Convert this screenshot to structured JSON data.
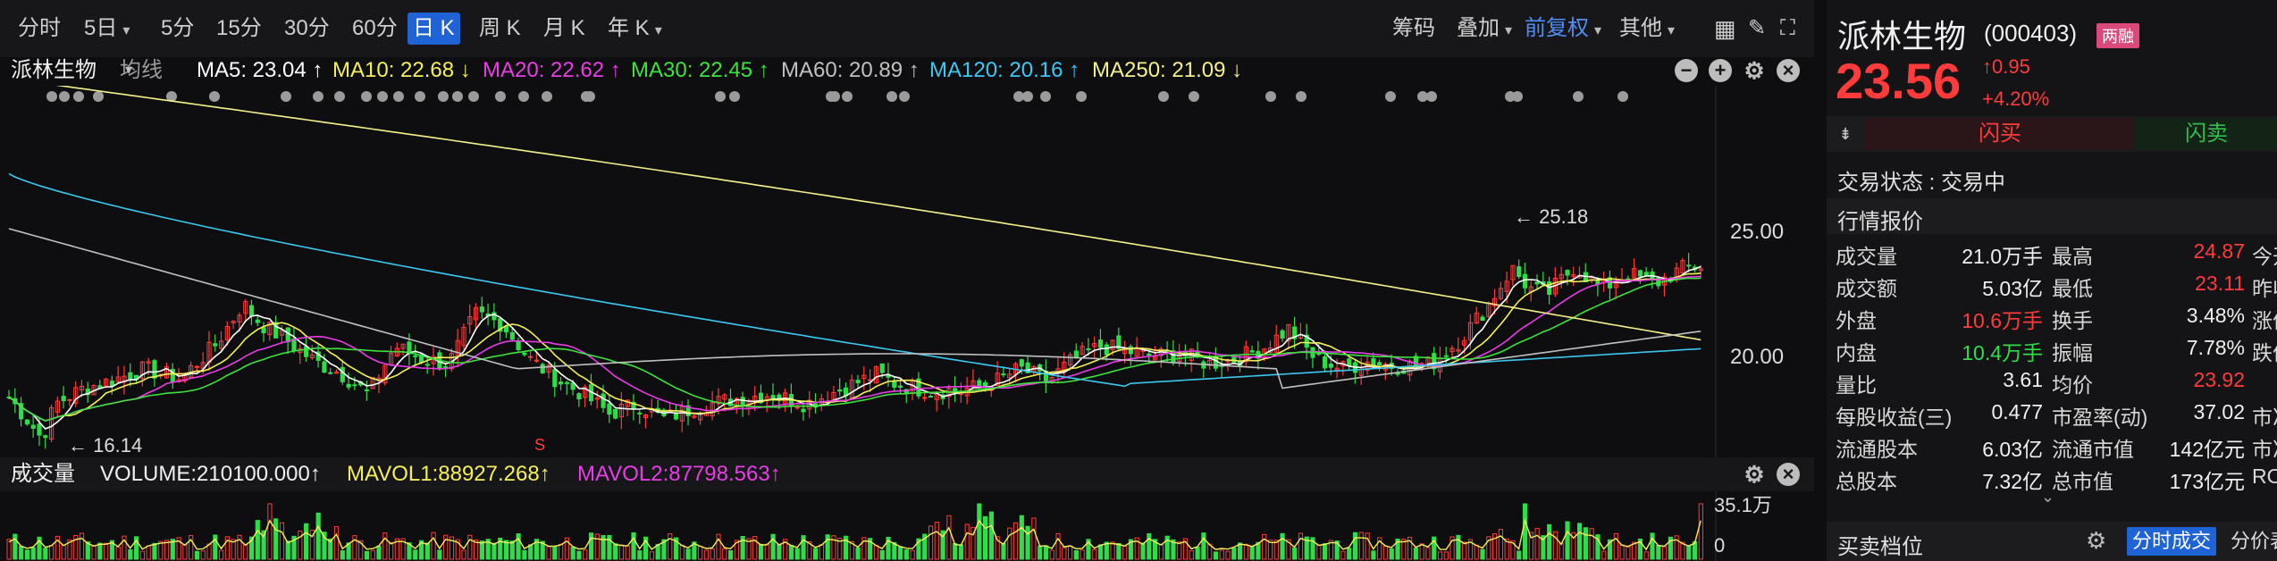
{
  "toolbar": {
    "periods": [
      "分时",
      "5日",
      "5分",
      "15分",
      "30分",
      "60分",
      "日 K",
      "周 K",
      "月 K",
      "年 K"
    ],
    "active": "日 K",
    "right_items": [
      "筹码",
      "叠加",
      "前复权",
      "其他"
    ]
  },
  "ma_row": {
    "stock_name": "派林生物",
    "type_label": "均线",
    "ma5": "MA5: 23.04 ↑",
    "ma10": "MA10: 22.68 ↓",
    "ma20": "MA20: 22.62 ↑",
    "ma30": "MA30: 22.45 ↑",
    "ma60": "MA60: 20.89 ↑",
    "ma120": "MA120: 20.16 ↑",
    "ma250": "MA250: 21.09 ↓"
  },
  "colors": {
    "ma5": "#ffffff",
    "ma10": "#f5f05a",
    "ma20": "#e83de6",
    "ma30": "#3ee23e",
    "ma60": "#c0c0c0",
    "ma120": "#3cc8f0",
    "ma250": "#f5f08a",
    "up": "#ff3b3b",
    "down": "#2fdc4a",
    "accent": "#1f63d6"
  },
  "main_chart": {
    "price_labels": [
      "25.00",
      "20.00"
    ],
    "high_marker": "25.18",
    "low_marker": "16.14",
    "signal": "S"
  },
  "volume": {
    "title": "成交量",
    "volume": "VOLUME:210100.000↑",
    "mavol1": "MAVOL1:88927.268↑",
    "mavol2": "MAVOL2:87798.563↑",
    "axis_top": "35.1万",
    "axis_bottom": "0"
  },
  "panel": {
    "name": "派林生物",
    "code": "(000403)",
    "badge": "两融",
    "price": "23.56",
    "change": "↑0.95",
    "change_pct": "+4.20%",
    "buy": "闪买",
    "sell": "闪卖",
    "status": "交易状态 : 交易中",
    "quote_title": "行情报价",
    "quotes": [
      {
        "l1": "成交量",
        "v1": "21.0万手",
        "c1": "",
        "l2": "最高",
        "v2": "24.87",
        "c2": "red",
        "l3": "今开"
      },
      {
        "l1": "成交额",
        "v1": "5.03亿",
        "c1": "",
        "l2": "最低",
        "v2": "23.11",
        "c2": "red",
        "l3": "昨收"
      },
      {
        "l1": "外盘",
        "v1": "10.6万手",
        "c1": "red",
        "l2": "换手",
        "v2": "3.48%",
        "c2": "",
        "l3": "涨停"
      },
      {
        "l1": "内盘",
        "v1": "10.4万手",
        "c1": "green",
        "l2": "振幅",
        "v2": "7.78%",
        "c2": "",
        "l3": "跌停"
      },
      {
        "l1": "量比",
        "v1": "3.61",
        "c1": "",
        "l2": "均价",
        "v2": "23.92",
        "c2": "red",
        "l3": ""
      },
      {
        "l1": "每股收益(三)",
        "v1": "0.477",
        "c1": "",
        "l2": "市盈率(动)",
        "v2": "37.02",
        "c2": "",
        "l3": "市净率"
      },
      {
        "l1": "流通股本",
        "v1": "6.03亿",
        "c1": "",
        "l2": "流通市值",
        "v2": "142亿元",
        "c2": "",
        "l3": "市净率"
      },
      {
        "l1": "总股本",
        "v1": "7.32亿",
        "c1": "",
        "l2": "总市值",
        "v2": "173亿元",
        "c2": "",
        "l3": "ROE"
      }
    ],
    "order_title": "买卖档位",
    "tab1": "分时成交",
    "tab2": "分价表"
  }
}
